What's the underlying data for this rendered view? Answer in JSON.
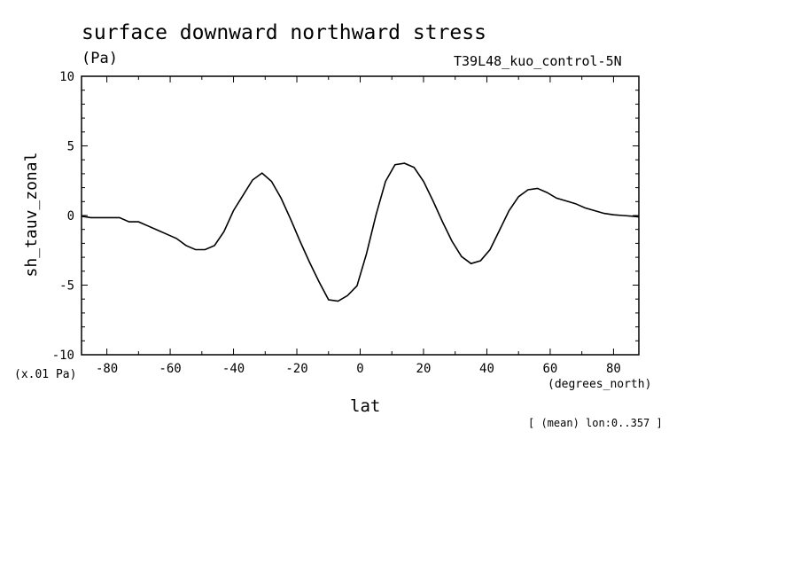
{
  "chart_data": {
    "type": "line",
    "title": "surface downward northward stress",
    "units_label": "(Pa)",
    "dataset_label": "T39L48_kuo_control-5N",
    "ylabel": "sh_tauv_zonal",
    "xlabel": "lat",
    "x_units_label": "(degrees_north)",
    "scale_label": "(x.01 Pa)",
    "averaging_label": "[ (mean) lon:0..357 ]",
    "xlim": [
      -88,
      88
    ],
    "ylim": [
      -10,
      10
    ],
    "x_ticks": [
      -80,
      -60,
      -40,
      -20,
      0,
      20,
      40,
      60,
      80
    ],
    "y_ticks": [
      -10,
      -5,
      0,
      5,
      10
    ],
    "x_tick_labels": [
      "-80",
      "-60",
      "-40",
      "-20",
      "0",
      "20",
      "40",
      "60",
      "80"
    ],
    "y_tick_labels": [
      "-10",
      "-5",
      "0",
      "5",
      "10"
    ],
    "grid": false,
    "line_color": "#000000",
    "series": [
      {
        "x": [
          -88,
          -85,
          -82,
          -79,
          -76,
          -73,
          -70,
          -67,
          -64,
          -61,
          -58,
          -55,
          -52,
          -49,
          -46,
          -43,
          -40,
          -37,
          -34,
          -31,
          -28,
          -25,
          -22,
          -19,
          -16,
          -13,
          -10,
          -7,
          -4,
          -1,
          2,
          5,
          8,
          11,
          14,
          17,
          20,
          23,
          26,
          29,
          32,
          35,
          38,
          41,
          44,
          47,
          50,
          53,
          56,
          59,
          62,
          65,
          68,
          71,
          74,
          77,
          80,
          83,
          86,
          88
        ],
        "y": [
          -0.05,
          -0.15,
          -0.15,
          -0.15,
          -0.15,
          -0.45,
          -0.45,
          -0.75,
          -1.05,
          -1.35,
          -1.65,
          -2.15,
          -2.45,
          -2.45,
          -2.15,
          -1.15,
          0.35,
          1.45,
          2.55,
          3.05,
          2.45,
          1.25,
          -0.25,
          -1.85,
          -3.35,
          -4.75,
          -6.05,
          -6.15,
          -5.75,
          -5.05,
          -2.75,
          0.05,
          2.45,
          3.65,
          3.75,
          3.45,
          2.45,
          1.05,
          -0.45,
          -1.85,
          -2.95,
          -3.45,
          -3.25,
          -2.45,
          -1.05,
          0.35,
          1.35,
          1.85,
          1.95,
          1.65,
          1.25,
          1.05,
          0.85,
          0.55,
          0.35,
          0.15,
          0.05,
          0.0,
          -0.05,
          -0.1
        ]
      }
    ]
  }
}
